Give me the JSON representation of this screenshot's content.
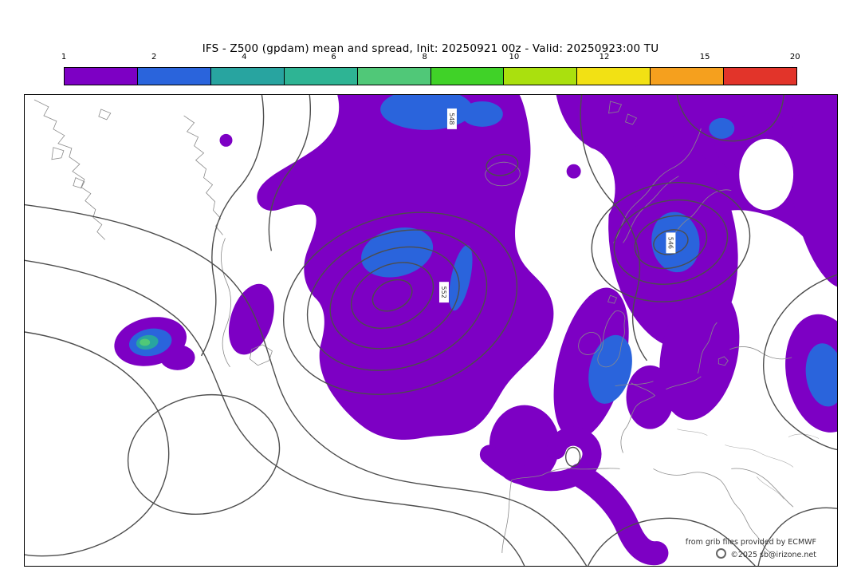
{
  "title": "IFS - Z500 (gpdam) mean and spread, Init: 20250921 00z - Valid: 20250923:00 TU",
  "colorbar": {
    "ticks": [
      "1",
      "2",
      "4",
      "6",
      "8",
      "10",
      "12",
      "15",
      "20"
    ],
    "tick_positions_pct": [
      0,
      12.3,
      24.6,
      36.8,
      49.2,
      61.4,
      73.7,
      87.4,
      99.7
    ],
    "colors": [
      "#7d00c4",
      "#2a64dc",
      "#28a4a0",
      "#2eb494",
      "#50c878",
      "#40d228",
      "#aae00e",
      "#f2e114",
      "#f5a01e",
      "#e2342a"
    ]
  },
  "map": {
    "contour_labels": [
      "548",
      "552",
      "546"
    ],
    "spread_fill_colors": {
      "spread_1_2": "#7d00c4",
      "spread_2_4": "#2a64dc",
      "spread_4_6": "#28a4a0",
      "spread_6_8": "#50c878"
    },
    "contour_color": "#4d4d4d",
    "coastline_color": "#8a8a8a",
    "attribution_line1": "from grib files provided by ECMWF",
    "attribution_line2": "©2025 sb@irizone.net"
  }
}
